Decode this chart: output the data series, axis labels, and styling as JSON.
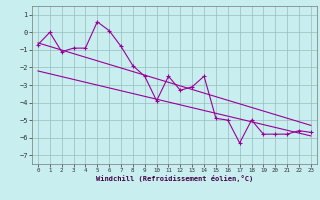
{
  "xlabel": "Windchill (Refroidissement éolien,°C)",
  "x_data": [
    0,
    1,
    2,
    3,
    4,
    5,
    6,
    7,
    8,
    9,
    10,
    11,
    12,
    13,
    14,
    15,
    16,
    17,
    18,
    19,
    20,
    21,
    22,
    23
  ],
  "y_data": [
    -0.7,
    0.0,
    -1.1,
    -0.9,
    -0.9,
    0.6,
    0.1,
    -0.8,
    -1.9,
    -2.5,
    -3.9,
    -2.5,
    -3.3,
    -3.1,
    -2.5,
    -4.9,
    -5.0,
    -6.3,
    -5.0,
    -5.8,
    -5.8,
    -5.8,
    -5.6,
    -5.7
  ],
  "line1_x": [
    0,
    23
  ],
  "line1_y": [
    -0.6,
    -5.3
  ],
  "line2_x": [
    0,
    23
  ],
  "line2_y": [
    -2.2,
    -5.9
  ],
  "line_color": "#990099",
  "bg_color": "#c8eef0",
  "grid_color": "#99bbbb",
  "ylim": [
    -7.5,
    1.5
  ],
  "xlim": [
    -0.5,
    23.5
  ],
  "yticks": [
    1,
    0,
    -1,
    -2,
    -3,
    -4,
    -5,
    -6,
    -7
  ],
  "xticks": [
    0,
    1,
    2,
    3,
    4,
    5,
    6,
    7,
    8,
    9,
    10,
    11,
    12,
    13,
    14,
    15,
    16,
    17,
    18,
    19,
    20,
    21,
    22,
    23
  ]
}
